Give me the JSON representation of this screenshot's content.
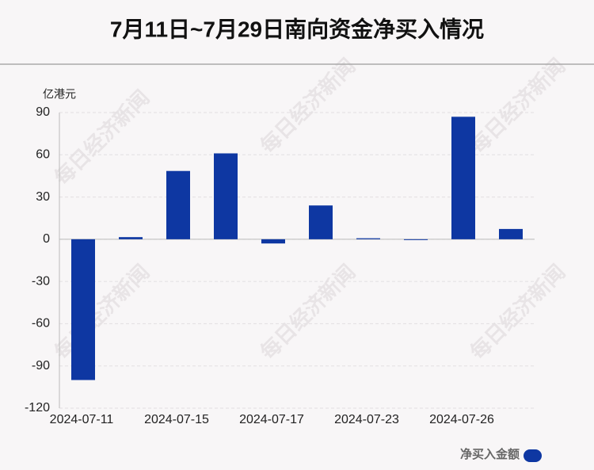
{
  "chart_data": {
    "type": "bar",
    "title": "7月11日~7月29日南向资金净买入情况",
    "y_unit": "亿港元",
    "watermark": "每日经济新闻",
    "categories": [
      "2024-07-11",
      null,
      "2024-07-15",
      null,
      "2024-07-17",
      null,
      "2024-07-23",
      null,
      "2024-07-26",
      null
    ],
    "series": [
      {
        "name": "净买入金额",
        "color": "#0e37a2",
        "values": [
          -100,
          1.5,
          48.5,
          61,
          -3,
          24,
          0.7,
          -0.5,
          87,
          7.3
        ]
      }
    ],
    "ylim": [
      -120,
      90
    ],
    "yticks": [
      -120,
      -90,
      -60,
      -30,
      0,
      30,
      60,
      90
    ],
    "grid": true
  }
}
